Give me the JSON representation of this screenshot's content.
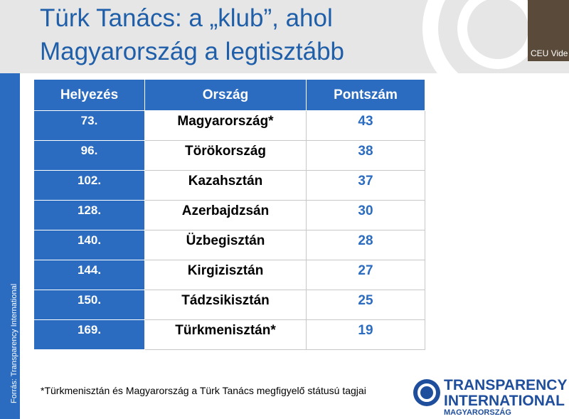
{
  "header": {
    "title_lines": [
      "Türk Tanács: a „klub”, ahol",
      "Magyarország a legtisztább"
    ]
  },
  "video_label": "CEU Vide",
  "table": {
    "columns": [
      "Helyezés",
      "Ország",
      "Pontszám"
    ],
    "rows": [
      [
        "73.",
        "Magyarország*",
        43
      ],
      [
        "96.",
        "Törökország",
        38
      ],
      [
        "102.",
        "Kazahsztán",
        37
      ],
      [
        "128.",
        "Azerbajdzsán",
        30
      ],
      [
        "140.",
        "Üzbegisztán",
        28
      ],
      [
        "144.",
        "Kirgizisztán",
        27
      ],
      [
        "150.",
        "Tádzsikisztán",
        25
      ],
      [
        "169.",
        "Türkmenisztán*",
        19
      ]
    ]
  },
  "footnote": "*Türkmenisztán és Magyarország a Türk Tanács megfigyelő státusú tagjai",
  "source": "Forrás: Transparency International",
  "logo": {
    "line1": "TRANSPARENCY",
    "line2": "INTERNATIONAL",
    "line3": "MAGYARORSZÁG"
  }
}
